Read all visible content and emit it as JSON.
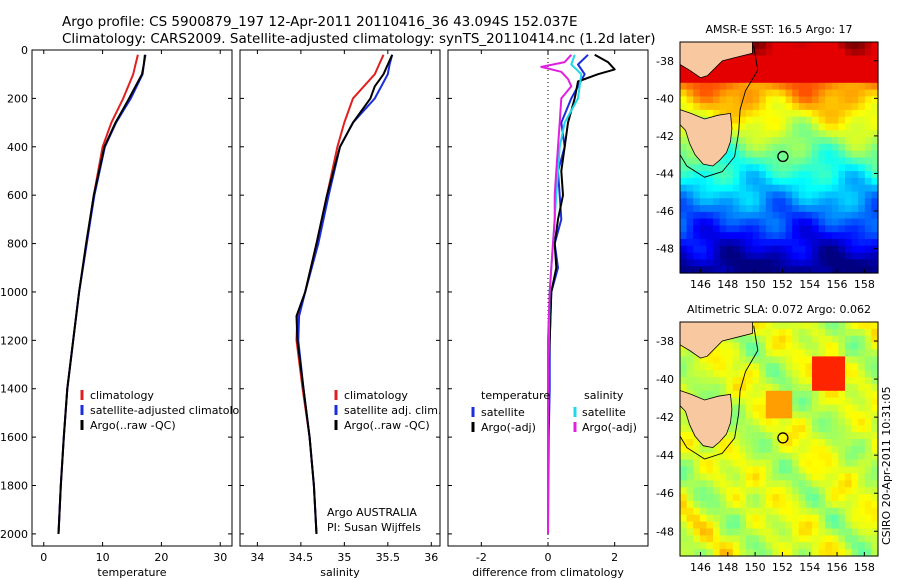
{
  "header": {
    "line1": "Argo profile: CS 5900879_197 12-Apr-2011 20110416_36 43.094S 152.037E",
    "line2": "Climatology: CARS2009. Satellite-adjusted climatology: synTS_20110414.nc (1.2d later)"
  },
  "side_label": "CSIRO 20-Apr-2011 10:31:05",
  "colors": {
    "red": "#e02020",
    "blue": "#1a2ee0",
    "black": "#000000",
    "cyan": "#20d8e8",
    "magenta": "#e020e0",
    "land": "#f8c8a0"
  },
  "chart_data": [
    {
      "type": "line",
      "xlabel": "temperature",
      "xlim": [
        -2,
        32
      ],
      "xticks": [
        0,
        10,
        20,
        30
      ],
      "ylim": [
        2050,
        0
      ],
      "yticks": [
        0,
        200,
        400,
        600,
        800,
        1000,
        1200,
        1400,
        1600,
        1800,
        2000
      ],
      "legend": [
        "climatology",
        "satellite-adjusted climatolog",
        "Argo(..raw -QC)"
      ],
      "series": [
        {
          "color": "red",
          "points": [
            [
              16,
              20
            ],
            [
              15.6,
              60
            ],
            [
              15.2,
              100
            ],
            [
              13.5,
              200
            ],
            [
              11.5,
              300
            ],
            [
              10,
              400
            ],
            [
              8.5,
              600
            ],
            [
              7.3,
              800
            ],
            [
              6,
              1000
            ],
            [
              5,
              1200
            ],
            [
              4,
              1400
            ],
            [
              3.4,
              1600
            ],
            [
              2.9,
              1800
            ],
            [
              2.5,
              2000
            ]
          ]
        },
        {
          "color": "blue",
          "points": [
            [
              17.3,
              20
            ],
            [
              17,
              60
            ],
            [
              16.8,
              100
            ],
            [
              14.8,
              200
            ],
            [
              12.3,
              300
            ],
            [
              10.4,
              400
            ],
            [
              8.6,
              600
            ],
            [
              7.3,
              800
            ],
            [
              6,
              1000
            ],
            [
              5,
              1200
            ],
            [
              4,
              1400
            ],
            [
              3.4,
              1600
            ],
            [
              2.9,
              1800
            ],
            [
              2.5,
              2000
            ]
          ]
        },
        {
          "color": "black",
          "points": [
            [
              17.2,
              20
            ],
            [
              17,
              60
            ],
            [
              16.7,
              100
            ],
            [
              14.5,
              200
            ],
            [
              12.2,
              300
            ],
            [
              10.3,
              400
            ],
            [
              8.5,
              600
            ],
            [
              7.2,
              800
            ],
            [
              6,
              1000
            ],
            [
              5,
              1200
            ],
            [
              4,
              1400
            ],
            [
              3.4,
              1600
            ],
            [
              2.9,
              1800
            ],
            [
              2.5,
              2000
            ]
          ]
        }
      ]
    },
    {
      "type": "line",
      "xlabel": "salinity",
      "xlim": [
        33.8,
        36.1
      ],
      "xticks": [
        34,
        34.5,
        35,
        35.5,
        36
      ],
      "xticklabels": [
        "34",
        "34.5",
        "35",
        "35.5",
        "36"
      ],
      "ylim": [
        2050,
        0
      ],
      "legend": [
        "climatology",
        "satellite adj. clim.",
        "Argo(..raw -QC)"
      ],
      "annotation": [
        "Argo AUSTRALIA",
        "PI: Susan Wijffels"
      ],
      "series": [
        {
          "color": "red",
          "points": [
            [
              35.45,
              20
            ],
            [
              35.4,
              60
            ],
            [
              35.35,
              100
            ],
            [
              35.1,
              200
            ],
            [
              35.0,
              300
            ],
            [
              34.92,
              400
            ],
            [
              34.8,
              600
            ],
            [
              34.68,
              800
            ],
            [
              34.55,
              1000
            ],
            [
              34.46,
              1100
            ],
            [
              34.45,
              1200
            ],
            [
              34.52,
              1400
            ],
            [
              34.6,
              1600
            ],
            [
              34.65,
              1800
            ],
            [
              34.68,
              2000
            ]
          ]
        },
        {
          "color": "blue",
          "points": [
            [
              35.55,
              20
            ],
            [
              35.52,
              60
            ],
            [
              35.5,
              100
            ],
            [
              35.35,
              200
            ],
            [
              35.1,
              300
            ],
            [
              34.95,
              400
            ],
            [
              34.82,
              600
            ],
            [
              34.7,
              800
            ],
            [
              34.55,
              1000
            ],
            [
              34.48,
              1100
            ],
            [
              34.47,
              1200
            ],
            [
              34.53,
              1400
            ],
            [
              34.6,
              1600
            ],
            [
              34.65,
              1800
            ],
            [
              34.68,
              2000
            ]
          ]
        },
        {
          "color": "black",
          "points": [
            [
              35.55,
              20
            ],
            [
              35.5,
              60
            ],
            [
              35.45,
              100
            ],
            [
              35.35,
              150
            ],
            [
              35.3,
              200
            ],
            [
              35.1,
              300
            ],
            [
              34.95,
              400
            ],
            [
              34.8,
              600
            ],
            [
              34.68,
              800
            ],
            [
              34.55,
              1000
            ],
            [
              34.45,
              1100
            ],
            [
              34.46,
              1200
            ],
            [
              34.53,
              1400
            ],
            [
              34.6,
              1600
            ],
            [
              34.65,
              1800
            ],
            [
              34.68,
              2000
            ]
          ]
        }
      ]
    },
    {
      "type": "line",
      "xlabel": "difference from climatology",
      "xlim": [
        -3,
        3
      ],
      "xticks": [
        -2,
        0,
        2
      ],
      "ylim": [
        2050,
        0
      ],
      "legend_headers": [
        "temperature",
        "salinity"
      ],
      "legend_left": [
        "satellite",
        "Argo(-adj)"
      ],
      "legend_right": [
        "satellite",
        "Argo(-adj)"
      ],
      "series": [
        {
          "color": "blue",
          "points": [
            [
              1.2,
              20
            ],
            [
              0.9,
              60
            ],
            [
              1.1,
              100
            ],
            [
              0.7,
              200
            ],
            [
              0.4,
              300
            ],
            [
              0.5,
              400
            ],
            [
              0.3,
              500
            ],
            [
              0.35,
              600
            ],
            [
              0.4,
              700
            ],
            [
              0.2,
              800
            ],
            [
              0.3,
              900
            ],
            [
              0.1,
              1000
            ],
            [
              0.05,
              1200
            ],
            [
              0.05,
              1400
            ],
            [
              0.02,
              1600
            ],
            [
              0.0,
              2000
            ]
          ]
        },
        {
          "color": "black",
          "points": [
            [
              1.4,
              20
            ],
            [
              1.8,
              50
            ],
            [
              2.0,
              80
            ],
            [
              1.5,
              100
            ],
            [
              0.9,
              130
            ],
            [
              0.8,
              200
            ],
            [
              0.6,
              300
            ],
            [
              0.5,
              400
            ],
            [
              0.4,
              500
            ],
            [
              0.45,
              600
            ],
            [
              0.3,
              700
            ],
            [
              0.2,
              800
            ],
            [
              0.25,
              900
            ],
            [
              0.1,
              1000
            ],
            [
              0.05,
              1200
            ],
            [
              0.0,
              1400
            ],
            [
              0.0,
              2000
            ]
          ]
        },
        {
          "color": "cyan",
          "points": [
            [
              0.8,
              20
            ],
            [
              0.7,
              60
            ],
            [
              1.0,
              100
            ],
            [
              0.9,
              200
            ],
            [
              0.5,
              300
            ],
            [
              0.35,
              400
            ],
            [
              0.3,
              500
            ],
            [
              0.25,
              600
            ],
            [
              0.2,
              700
            ],
            [
              0.15,
              800
            ],
            [
              0.1,
              900
            ],
            [
              0.05,
              1000
            ],
            [
              0.02,
              1200
            ],
            [
              0.0,
              1500
            ],
            [
              0.0,
              2000
            ]
          ]
        },
        {
          "color": "magenta",
          "points": [
            [
              0.7,
              20
            ],
            [
              0.5,
              50
            ],
            [
              -0.2,
              70
            ],
            [
              0.4,
              90
            ],
            [
              0.6,
              120
            ],
            [
              0.7,
              150
            ],
            [
              0.4,
              200
            ],
            [
              0.35,
              300
            ],
            [
              0.3,
              400
            ],
            [
              0.25,
              500
            ],
            [
              0.2,
              600
            ],
            [
              0.2,
              700
            ],
            [
              0.15,
              800
            ],
            [
              0.1,
              900
            ],
            [
              0.05,
              1000
            ],
            [
              0.0,
              1200
            ],
            [
              0.0,
              1500
            ],
            [
              0.0,
              2000
            ]
          ]
        }
      ]
    },
    {
      "type": "heatmap",
      "title": "AMSR-E SST: 16.5 Argo: 17",
      "colormap": "jet",
      "pattern": "sst",
      "xlim": [
        144.5,
        159
      ],
      "ylim": [
        -49.3,
        -37
      ],
      "xticks": [
        146,
        148,
        150,
        152,
        154,
        156,
        158
      ],
      "yticks": [
        -38,
        -40,
        -42,
        -44,
        -46,
        -48
      ],
      "marker": [
        152.037,
        -43.094
      ]
    },
    {
      "type": "heatmap",
      "title": "Altimetric SLA: 0.072 Argo: 0.062",
      "colormap": "jet",
      "pattern": "sla",
      "xlim": [
        144.5,
        159
      ],
      "ylim": [
        -49.3,
        -37
      ],
      "xticks": [
        146,
        148,
        150,
        152,
        154,
        156,
        158
      ],
      "yticks": [
        -38,
        -40,
        -42,
        -44,
        -46,
        -48
      ],
      "marker": [
        152.037,
        -43.094
      ]
    }
  ]
}
